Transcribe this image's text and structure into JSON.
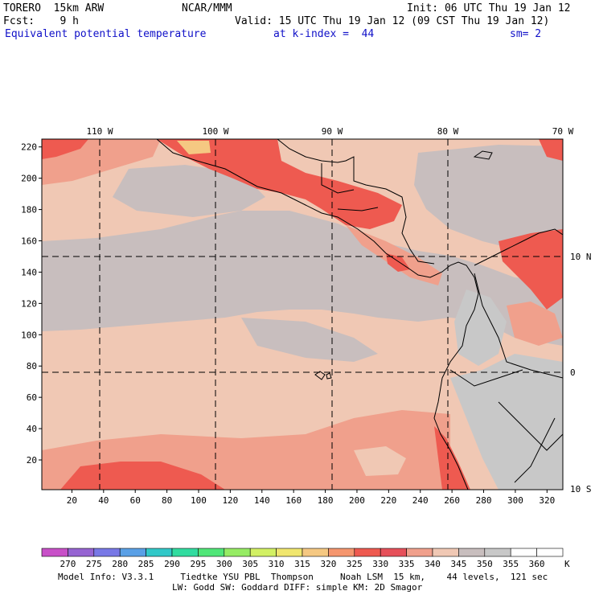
{
  "header": {
    "model": "TORERO  15km ARW",
    "org": "NCAR/MMM",
    "init": "Init: 06 UTC Thu 19 Jan 12",
    "fcst": "Fcst:    9 h",
    "valid": "Valid: 15 UTC Thu 19 Jan 12 (09 CST Thu 19 Jan 12)",
    "field": "Equivalent potential temperature",
    "level": "at k-index =  44",
    "smooth": "sm= 2"
  },
  "map": {
    "top_lon_labels": [
      "110 W",
      "100 W",
      "90 W",
      "80 W",
      "70 W"
    ],
    "right_lat_labels": [
      "10 N",
      "0",
      "10 S"
    ],
    "y_ticks": [
      "220",
      "200",
      "180",
      "160",
      "140",
      "120",
      "100",
      "80",
      "60",
      "40",
      "20"
    ],
    "x_ticks": [
      "20",
      "40",
      "60",
      "80",
      "100",
      "120",
      "140",
      "160",
      "180",
      "200",
      "220",
      "240",
      "260",
      "280",
      "300",
      "320"
    ],
    "grid_x_range": [
      1,
      330
    ],
    "grid_y_range": [
      1,
      225
    ]
  },
  "colorbar": {
    "labels": [
      "270",
      "275",
      "280",
      "285",
      "290",
      "295",
      "300",
      "305",
      "310",
      "315",
      "320",
      "325",
      "330",
      "335",
      "340",
      "345",
      "350",
      "355",
      "360"
    ],
    "unit": "K",
    "colors": [
      "#c850c8",
      "#9664d2",
      "#7878e6",
      "#5aa0e6",
      "#32c8c8",
      "#32dca0",
      "#50e678",
      "#96ec64",
      "#d2f064",
      "#f0e66e",
      "#f5c882",
      "#f5966e",
      "#ee5a50",
      "#e6505a",
      "#f0a08c",
      "#f0c8b4",
      "#c8bebe",
      "#c8c8c8",
      "#ffffff",
      "#ffffff"
    ]
  },
  "footer": {
    "line1": "Model Info: V3.3.1     Tiedtke YSU PBL  Thompson     Noah LSM  15 km,    44 levels,  121 sec",
    "line2": "LW: Godd SW: Goddard DIFF: simple KM: 2D Smagor"
  }
}
